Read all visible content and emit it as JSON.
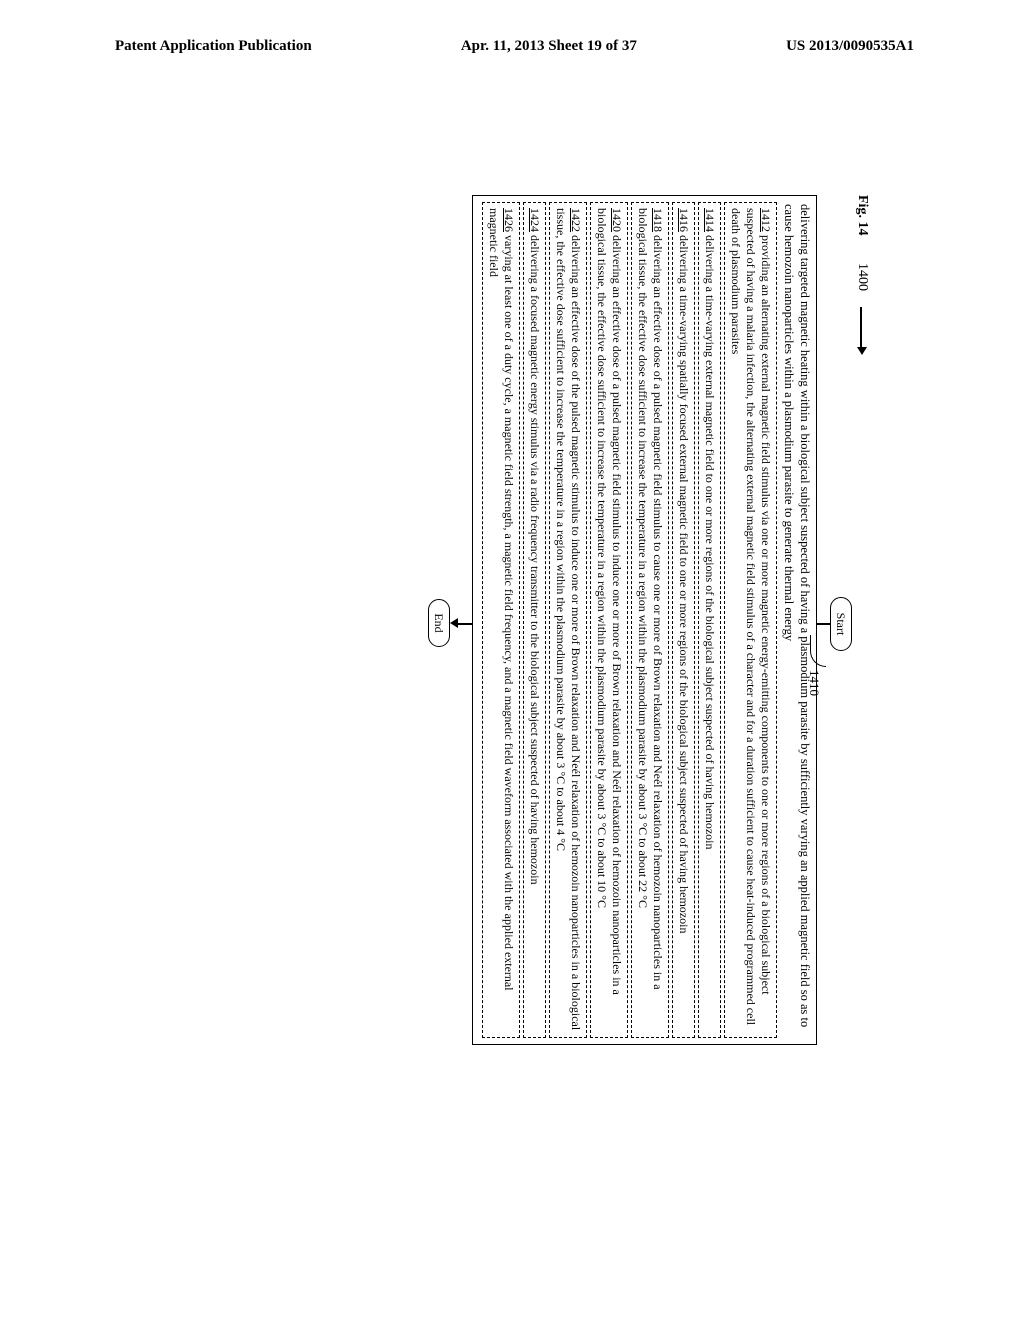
{
  "header": {
    "left": "Patent Application Publication",
    "center": "Apr. 11, 2013  Sheet 19 of 37",
    "right": "US 2013/0090535A1"
  },
  "figure": {
    "label": "Fig. 14",
    "flow_num": "1400",
    "start": "Start",
    "step_num": "1410",
    "end": "End",
    "main_text": "delivering targeted magnetic heating within a biological subject suspected of having a plasmodium parasite by sufficiently varying an applied magnetic field so as to cause hemozoin nanoparticles within a plasmodium parasite to generate thermal energy",
    "subs": [
      {
        "num": "1412",
        "text": " providing an alternating external magnetic field stimulus via one or more magnetic energy-emitting components to one or more regions of a biological subject suspected of having a malaria infection, the alternating external magnetic field stimulus of a character and for a duration sufficient to cause heat-induced programmed cell death of plasmodium parasites"
      },
      {
        "num": "1414",
        "text": " delivering a time-varying external magnetic field to one or more regions of the biological subject suspected of having hemozoin"
      },
      {
        "num": "1416",
        "text": " delivering a time-varying spatially focused external magnetic field to one or more regions of the biological subject suspected of having hemozoin"
      },
      {
        "num": "1418",
        "text": " delivering an effective dose of a pulsed magnetic field stimulus to cause one or more of Brown relaxation and Neél relaxation of hemozoin nanoparticles in a biological tissue, the effective dose sufficient to increase the temperature in a region within the plasmodium parasite by about 3 °C to about 22 °C"
      },
      {
        "num": "1420",
        "text": " delivering an effective dose of a pulsed magnetic field stimulus to induce one or more of Brown relaxation and Neél relaxation of hemozoin nanoparticles in a biological tissue, the effective dose sufficient to increase the temperature in a region within the plasmodium parasite by about 3 °C to about 10 °C"
      },
      {
        "num": "1422",
        "text": " delivering an effective dose of the pulsed magnetic stimulus to induce one or more of Brown relaxation and Neél relaxation of hemozoin nanoparticles in a biological tissue, the effective dose sufficient to increase the temperature in a region within the plasmodium parasite by about 3 °C to about 4 °C"
      },
      {
        "num": "1424",
        "text": " delivering a focused magnetic energy stimulus via a radio frequency transmitter to the biological subject suspected of having hemozoin"
      },
      {
        "num": "1426",
        "text": " varying at least one of a duty cycle, a magnetic field strength, a magnetic field frequency, and a magnetic field waveform associated with the applied external magnetic field"
      }
    ]
  }
}
